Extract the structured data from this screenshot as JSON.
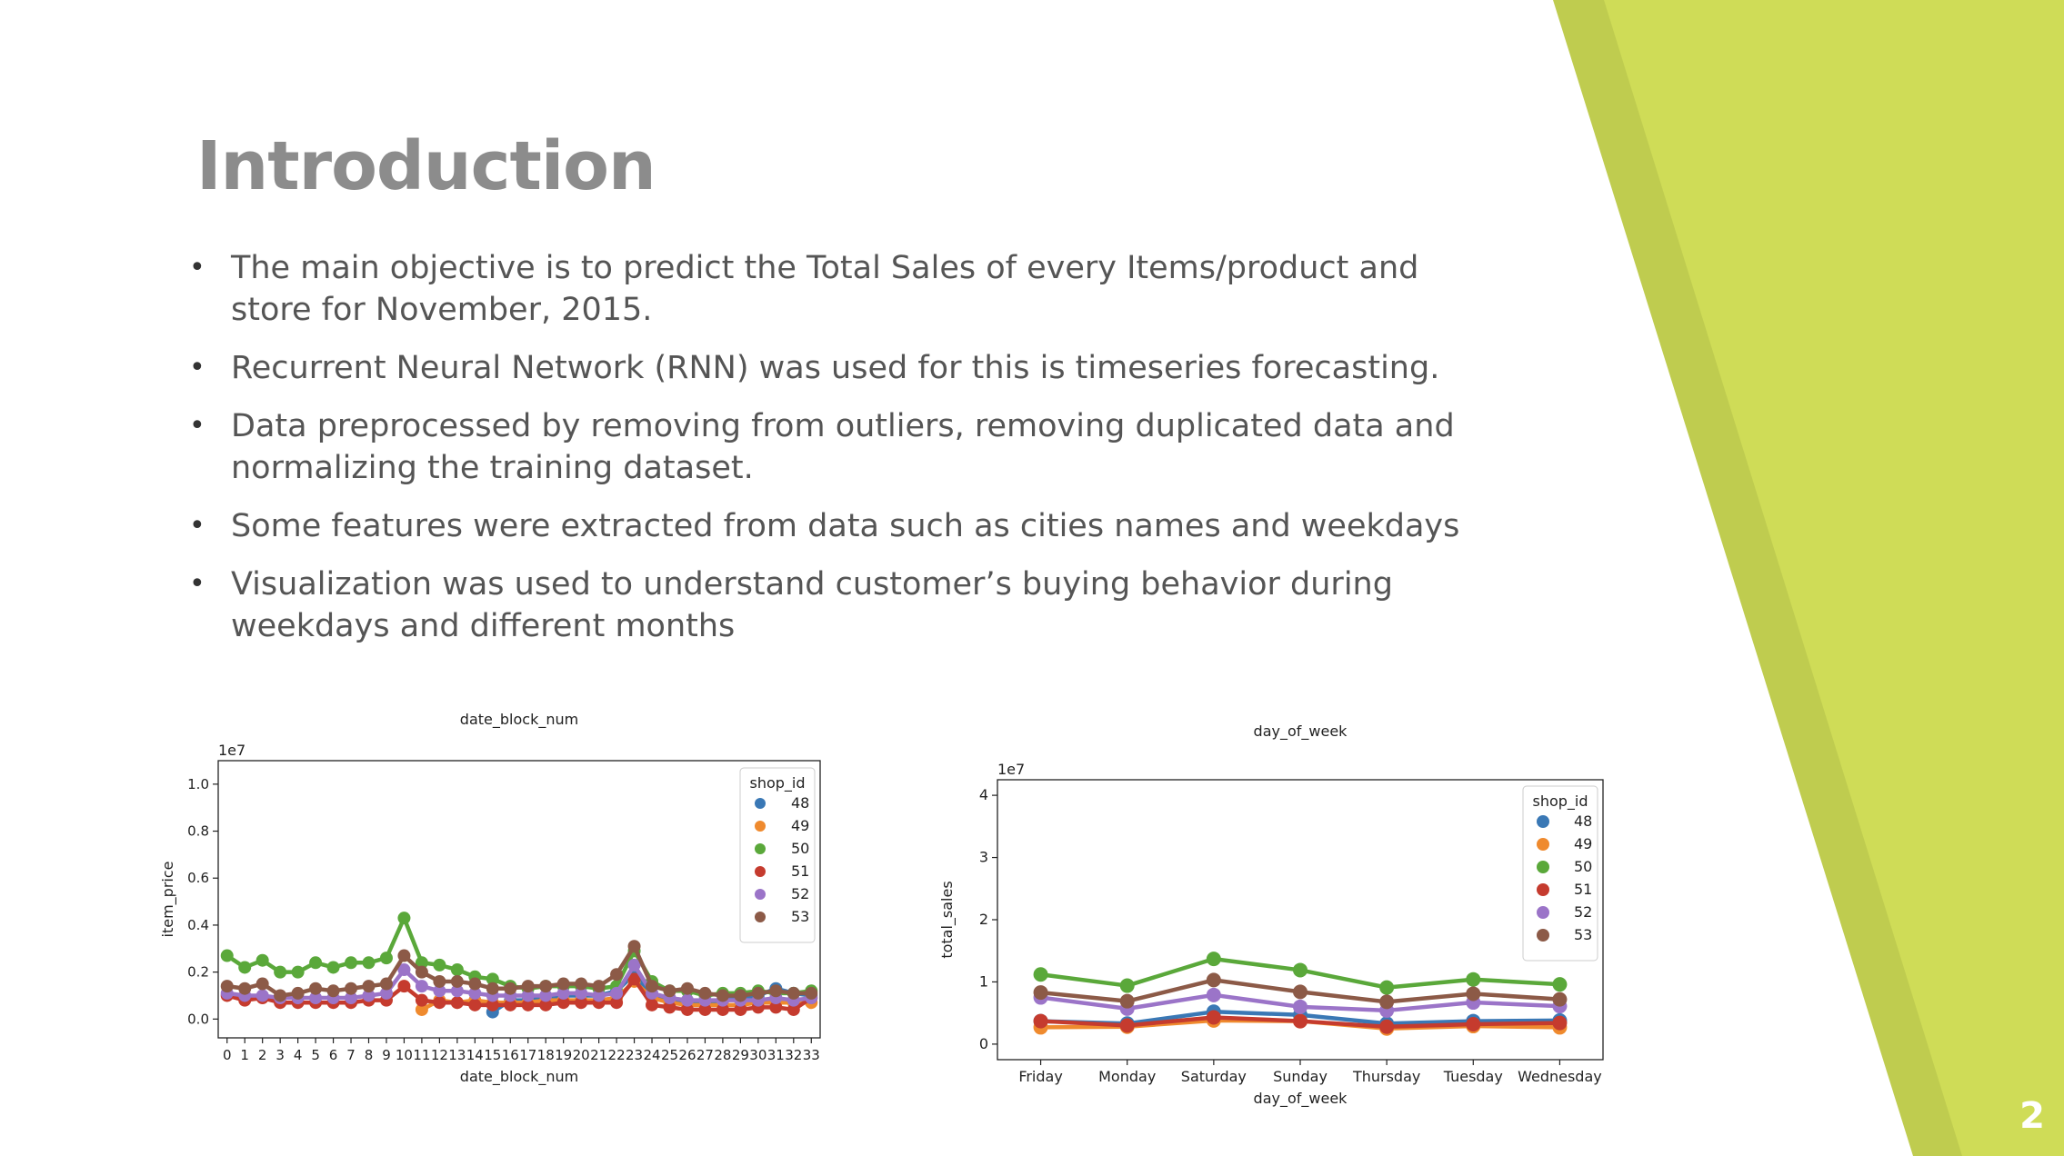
{
  "slide": {
    "title": "Introduction",
    "page_number": "2",
    "accent_colors": {
      "light": "#cfdc57",
      "dark": "#bfcc4f"
    },
    "bullets": [
      "The main objective is to predict the Total Sales of every Items/product and store for November, 2015.",
      "Recurrent Neural Network (RNN) was used for this is timeseries forecasting.",
      "Data preprocessed by removing from outliers, removing duplicated data and normalizing the training dataset.",
      "Some features were extracted from data such as cities names and weekdays",
      "Visualization was used to understand customer’s buying behavior during weekdays and different months"
    ],
    "bullet_glyph": "•"
  },
  "chart_data": [
    {
      "type": "line",
      "title": "date_block_num",
      "xlabel": "date_block_num",
      "ylabel": "item_price",
      "scale_label": "1e7",
      "categories": [
        "0",
        "1",
        "2",
        "3",
        "4",
        "5",
        "6",
        "7",
        "8",
        "9",
        "10",
        "11",
        "12",
        "13",
        "14",
        "15",
        "16",
        "17",
        "18",
        "19",
        "20",
        "21",
        "22",
        "23",
        "24",
        "25",
        "26",
        "27",
        "28",
        "29",
        "30",
        "31",
        "32",
        "33"
      ],
      "ylim": [
        -0.08,
        1.1
      ],
      "yticks": [
        "0.0",
        "0.2",
        "0.4",
        "0.6",
        "0.8",
        "1.0"
      ],
      "ytick_values": [
        0,
        0.2,
        0.4,
        0.6,
        0.8,
        1.0
      ],
      "grid": false,
      "legend_title": "shop_id",
      "legend_position": "top-right",
      "series": [
        {
          "name": "48",
          "color": "#3a78b5",
          "values": [
            null,
            null,
            null,
            null,
            null,
            null,
            null,
            null,
            null,
            null,
            null,
            null,
            null,
            null,
            null,
            0.03,
            0.08,
            0.08,
            0.09,
            0.1,
            0.1,
            0.1,
            0.12,
            0.19,
            0.1,
            0.08,
            0.08,
            0.07,
            0.08,
            0.09,
            0.1,
            0.13,
            0.11,
            0.1
          ]
        },
        {
          "name": "49",
          "color": "#ef8a2e",
          "values": [
            null,
            null,
            null,
            null,
            null,
            null,
            null,
            null,
            null,
            null,
            null,
            0.04,
            0.08,
            0.07,
            0.08,
            0.07,
            0.07,
            0.07,
            0.08,
            0.08,
            0.08,
            0.08,
            0.09,
            0.16,
            0.09,
            0.07,
            0.06,
            0.06,
            0.06,
            0.06,
            0.07,
            0.07,
            0.07,
            0.07
          ]
        },
        {
          "name": "50",
          "color": "#5aa83a",
          "values": [
            0.27,
            0.22,
            0.25,
            0.2,
            0.2,
            0.24,
            0.22,
            0.24,
            0.24,
            0.26,
            0.43,
            0.24,
            0.23,
            0.21,
            0.18,
            0.17,
            0.14,
            0.13,
            0.14,
            0.14,
            0.14,
            0.13,
            0.14,
            0.29,
            0.16,
            0.12,
            0.12,
            0.1,
            0.11,
            0.11,
            0.12,
            0.11,
            0.11,
            0.12
          ]
        },
        {
          "name": "51",
          "color": "#c53b2e",
          "values": [
            0.1,
            0.08,
            0.09,
            0.07,
            0.07,
            0.07,
            0.07,
            0.07,
            0.08,
            0.08,
            0.14,
            0.08,
            0.07,
            0.07,
            0.06,
            0.06,
            0.06,
            0.06,
            0.06,
            0.07,
            0.07,
            0.07,
            0.07,
            0.17,
            0.06,
            0.05,
            0.04,
            0.04,
            0.04,
            0.04,
            0.05,
            0.05,
            0.04,
            0.09
          ]
        },
        {
          "name": "52",
          "color": "#9b74c8",
          "values": [
            0.11,
            0.1,
            0.1,
            0.09,
            0.09,
            0.09,
            0.09,
            0.09,
            0.1,
            0.11,
            0.21,
            0.14,
            0.12,
            0.12,
            0.11,
            0.1,
            0.1,
            0.1,
            0.1,
            0.11,
            0.11,
            0.1,
            0.11,
            0.23,
            0.11,
            0.09,
            0.08,
            0.08,
            0.08,
            0.08,
            0.08,
            0.09,
            0.08,
            0.09
          ]
        },
        {
          "name": "53",
          "color": "#8c5a47",
          "values": [
            0.14,
            0.13,
            0.15,
            0.1,
            0.11,
            0.13,
            0.12,
            0.13,
            0.14,
            0.15,
            0.27,
            0.2,
            0.16,
            0.16,
            0.15,
            0.13,
            0.13,
            0.14,
            0.14,
            0.15,
            0.15,
            0.14,
            0.19,
            0.31,
            0.14,
            0.12,
            0.13,
            0.11,
            0.1,
            0.1,
            0.11,
            0.12,
            0.11,
            0.11
          ]
        }
      ]
    },
    {
      "type": "line",
      "title": "day_of_week",
      "xlabel": "day_of_week",
      "ylabel": "total_sales",
      "scale_label": "1e7",
      "categories": [
        "Friday",
        "Monday",
        "Saturday",
        "Sunday",
        "Thursday",
        "Tuesday",
        "Wednesday"
      ],
      "ylim": [
        -0.25,
        4.25
      ],
      "yticks": [
        "0",
        "1",
        "2",
        "3",
        "4"
      ],
      "ytick_values": [
        0,
        1,
        2,
        3,
        4
      ],
      "grid": false,
      "legend_title": "shop_id",
      "legend_position": "top-right",
      "series": [
        {
          "name": "48",
          "color": "#3a78b5",
          "values": [
            0.37,
            0.33,
            0.52,
            0.47,
            0.33,
            0.37,
            0.38
          ]
        },
        {
          "name": "49",
          "color": "#ef8a2e",
          "values": [
            0.27,
            0.28,
            0.38,
            0.37,
            0.25,
            0.29,
            0.27
          ]
        },
        {
          "name": "50",
          "color": "#5aa83a",
          "values": [
            1.12,
            0.94,
            1.37,
            1.19,
            0.91,
            1.04,
            0.96
          ]
        },
        {
          "name": "51",
          "color": "#c53b2e",
          "values": [
            0.37,
            0.3,
            0.43,
            0.37,
            0.28,
            0.32,
            0.34
          ]
        },
        {
          "name": "52",
          "color": "#9b74c8",
          "values": [
            0.75,
            0.57,
            0.79,
            0.6,
            0.54,
            0.67,
            0.61
          ]
        },
        {
          "name": "53",
          "color": "#8c5a47",
          "values": [
            0.83,
            0.69,
            1.03,
            0.84,
            0.68,
            0.81,
            0.72
          ]
        }
      ]
    }
  ]
}
